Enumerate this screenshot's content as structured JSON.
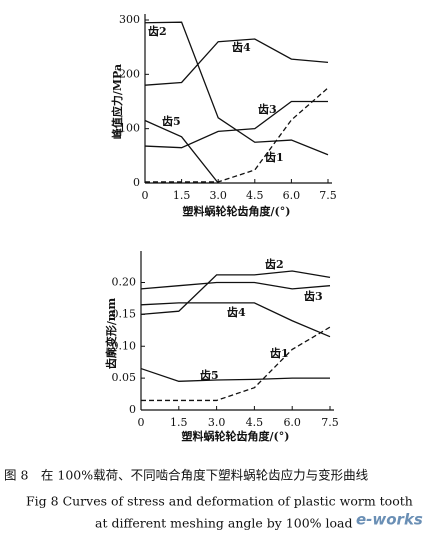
{
  "chart_data": [
    {
      "type": "line",
      "x_label": "塑料蜗轮轮齿角度/(°)",
      "y_label": "峰值应力/MPa",
      "x": [
        0,
        1.5,
        3,
        4.5,
        6,
        7.5
      ],
      "xlim": [
        0,
        7.5
      ],
      "xticks": [
        0,
        1.5,
        {
          "value": 3,
          "label": "3.0"
        },
        4.5,
        {
          "value": 6,
          "label": "6.0"
        },
        7.5
      ],
      "ylim": [
        0,
        300
      ],
      "yticks": [
        0,
        100,
        200,
        300
      ],
      "series": [
        {
          "name": "齿1",
          "color": "#111",
          "dashed": true,
          "values": [
            2,
            2,
            2,
            24,
            116,
            175
          ]
        },
        {
          "name": "齿2",
          "color": "#111",
          "values": [
            295,
            296,
            120,
            75,
            79,
            52
          ]
        },
        {
          "name": "齿3",
          "color": "#111",
          "values": [
            68,
            65,
            95,
            100,
            150,
            150
          ]
        },
        {
          "name": "齿4",
          "color": "#111",
          "values": [
            180,
            185,
            260,
            265,
            228,
            222
          ]
        },
        {
          "name": "齿5",
          "color": "#111",
          "values": [
            115,
            85,
            0,
            null,
            null,
            null
          ]
        }
      ]
    },
    {
      "type": "line",
      "x_label": "塑料蜗轮轮齿角度/(°)",
      "y_label": "齿廓变形/mm",
      "x": [
        0,
        1.5,
        3,
        4.5,
        6,
        7.5
      ],
      "xlim": [
        0,
        7.5
      ],
      "xticks": [
        0,
        1.5,
        {
          "value": 3,
          "label": "3.0"
        },
        4.5,
        {
          "value": 6,
          "label": "6.0"
        },
        7.5
      ],
      "ylim": [
        0,
        0.24
      ],
      "yticks": [
        0,
        0.05,
        {
          "value": 0.1,
          "label": "0.10"
        },
        0.15,
        {
          "value": 0.2,
          "label": "0.20"
        }
      ],
      "series": [
        {
          "name": "齿1",
          "color": "#111",
          "dashed": true,
          "values": [
            0.015,
            0.015,
            0.015,
            0.035,
            0.095,
            0.13
          ]
        },
        {
          "name": "齿2",
          "color": "#111",
          "values": [
            0.15,
            0.155,
            0.212,
            0.212,
            0.218,
            0.208
          ]
        },
        {
          "name": "齿3",
          "color": "#111",
          "values": [
            0.19,
            0.195,
            0.2,
            0.2,
            0.19,
            0.195
          ]
        },
        {
          "name": "齿4",
          "color": "#111",
          "values": [
            0.165,
            0.168,
            0.168,
            0.168,
            0.14,
            0.115
          ]
        },
        {
          "name": "齿5",
          "color": "#111",
          "values": [
            0.065,
            0.045,
            0.047,
            0.048,
            0.05,
            0.05
          ]
        }
      ]
    }
  ],
  "caption": {
    "zh": "图 8　在 100%载荷、不同啮合角度下塑料蜗轮齿应力与变形曲线",
    "en1": "Fig 8 Curves of stress and deformation of plastic worm tooth",
    "en2": "at different meshing angle by 100% load"
  },
  "watermark": "e-works"
}
